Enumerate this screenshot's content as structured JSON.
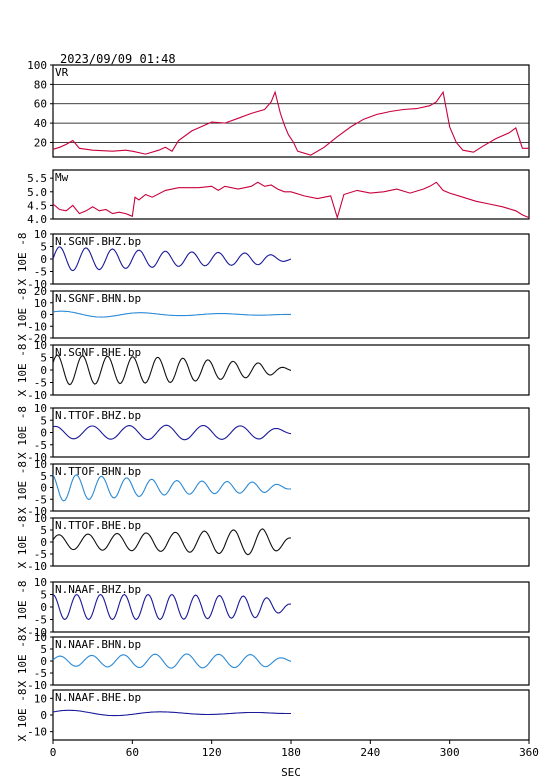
{
  "header": {
    "timestamp": "2023/09/09 01:48"
  },
  "x_axis": {
    "label": "SEC",
    "min": 0,
    "max": 360,
    "ticks": [
      0,
      60,
      120,
      180,
      240,
      300,
      360
    ]
  },
  "colors": {
    "vr": "#c8003c",
    "mw": "#c8003c",
    "bhz": "#1a1a9a",
    "bhn": "#2c8ad6",
    "bhe": "#111111"
  },
  "chart_data": [
    {
      "type": "line",
      "label": "VR",
      "ylim": [
        5,
        100
      ],
      "yticks": [
        20,
        40,
        60,
        80,
        100
      ],
      "grid": true,
      "color_key": "vr",
      "points": [
        [
          0,
          13
        ],
        [
          5,
          15
        ],
        [
          10,
          18
        ],
        [
          15,
          22
        ],
        [
          20,
          14
        ],
        [
          30,
          12
        ],
        [
          45,
          11
        ],
        [
          55,
          12
        ],
        [
          60,
          11
        ],
        [
          70,
          8
        ],
        [
          80,
          12
        ],
        [
          85,
          15
        ],
        [
          90,
          11
        ],
        [
          95,
          22
        ],
        [
          105,
          32
        ],
        [
          115,
          38
        ],
        [
          120,
          41
        ],
        [
          130,
          40
        ],
        [
          140,
          45
        ],
        [
          150,
          50
        ],
        [
          160,
          54
        ],
        [
          165,
          62
        ],
        [
          168,
          72
        ],
        [
          172,
          50
        ],
        [
          175,
          38
        ],
        [
          178,
          28
        ],
        [
          182,
          20
        ],
        [
          185,
          11
        ],
        [
          195,
          7
        ],
        [
          205,
          15
        ],
        [
          215,
          26
        ],
        [
          225,
          36
        ],
        [
          235,
          44
        ],
        [
          245,
          49
        ],
        [
          255,
          52
        ],
        [
          265,
          54
        ],
        [
          275,
          55
        ],
        [
          285,
          58
        ],
        [
          290,
          62
        ],
        [
          295,
          72
        ],
        [
          300,
          36
        ],
        [
          305,
          20
        ],
        [
          310,
          12
        ],
        [
          318,
          10
        ],
        [
          325,
          16
        ],
        [
          335,
          24
        ],
        [
          345,
          30
        ],
        [
          350,
          35
        ],
        [
          355,
          14
        ],
        [
          360,
          14
        ]
      ]
    },
    {
      "type": "line",
      "label": "Mw",
      "ylim": [
        4.0,
        5.8
      ],
      "yticks": [
        4.0,
        4.5,
        5.0,
        5.5
      ],
      "grid": false,
      "color_key": "mw",
      "points": [
        [
          0,
          4.55
        ],
        [
          5,
          4.35
        ],
        [
          10,
          4.3
        ],
        [
          15,
          4.5
        ],
        [
          20,
          4.2
        ],
        [
          25,
          4.3
        ],
        [
          30,
          4.45
        ],
        [
          35,
          4.3
        ],
        [
          40,
          4.35
        ],
        [
          45,
          4.2
        ],
        [
          50,
          4.25
        ],
        [
          55,
          4.2
        ],
        [
          60,
          4.1
        ],
        [
          62,
          4.8
        ],
        [
          65,
          4.7
        ],
        [
          70,
          4.9
        ],
        [
          75,
          4.8
        ],
        [
          85,
          5.05
        ],
        [
          95,
          5.15
        ],
        [
          110,
          5.15
        ],
        [
          120,
          5.2
        ],
        [
          125,
          5.05
        ],
        [
          130,
          5.2
        ],
        [
          140,
          5.1
        ],
        [
          150,
          5.2
        ],
        [
          155,
          5.35
        ],
        [
          160,
          5.2
        ],
        [
          165,
          5.25
        ],
        [
          170,
          5.1
        ],
        [
          175,
          5.0
        ],
        [
          180,
          5.0
        ],
        [
          190,
          4.85
        ],
        [
          200,
          4.75
        ],
        [
          210,
          4.85
        ],
        [
          215,
          4.05
        ],
        [
          220,
          4.9
        ],
        [
          230,
          5.05
        ],
        [
          240,
          4.95
        ],
        [
          250,
          5.0
        ],
        [
          260,
          5.1
        ],
        [
          270,
          4.95
        ],
        [
          280,
          5.1
        ],
        [
          285,
          5.2
        ],
        [
          290,
          5.35
        ],
        [
          295,
          5.05
        ],
        [
          300,
          4.95
        ],
        [
          310,
          4.8
        ],
        [
          320,
          4.65
        ],
        [
          330,
          4.55
        ],
        [
          340,
          4.45
        ],
        [
          350,
          4.3
        ],
        [
          355,
          4.15
        ],
        [
          360,
          4.05
        ]
      ]
    },
    {
      "type": "line",
      "label": "N.SGNF.BHZ.bp",
      "ylim": [
        -10,
        10
      ],
      "yticks": [
        -10,
        -5,
        0,
        5,
        10
      ],
      "color_key": "bhz",
      "ylabel": "X 10E -8",
      "x": [
        0,
        180
      ],
      "osc": {
        "amp": [
          5,
          3,
          2
        ],
        "period": 20,
        "phase": 0,
        "offset": 0
      }
    },
    {
      "type": "line",
      "label": "N.SGNF.BHN.bp",
      "ylim": [
        -20,
        20
      ],
      "yticks": [
        -20,
        -10,
        0,
        10,
        20
      ],
      "color_key": "bhn",
      "ylabel": "X 10E -8",
      "x": [
        0,
        180
      ],
      "osc": {
        "amp": [
          3,
          1,
          0.5
        ],
        "period": 60,
        "phase": 0.8,
        "offset": 0
      }
    },
    {
      "type": "line",
      "label": "N.SGNF.BHE.bp",
      "ylim": [
        -10,
        10
      ],
      "yticks": [
        -10,
        -5,
        0,
        5,
        10
      ],
      "color_key": "bhe",
      "ylabel": "X 10E -8",
      "x": [
        0,
        180
      ],
      "osc": {
        "amp": [
          6,
          5,
          2
        ],
        "period": 19,
        "phase": 0.5,
        "offset": 0
      }
    },
    {
      "type": "line",
      "label": "N.TTOF.BHZ.bp",
      "ylim": [
        -10,
        10
      ],
      "yticks": [
        -10,
        -5,
        0,
        5,
        10
      ],
      "color_key": "bhz",
      "ylabel": "X 10E -8",
      "x": [
        0,
        180
      ],
      "osc": {
        "amp": [
          2.5,
          3,
          2.5
        ],
        "period": 28,
        "phase": 1.2,
        "offset": 0
      }
    },
    {
      "type": "line",
      "label": "N.TTOF.BHN.bp",
      "ylim": [
        -10,
        10
      ],
      "yticks": [
        -10,
        -5,
        0,
        5,
        10
      ],
      "color_key": "bhn",
      "ylabel": "X 10E -8",
      "x": [
        0,
        180
      ],
      "osc": {
        "amp": [
          6,
          3,
          2
        ],
        "period": 19,
        "phase": 2.0,
        "offset": 0
      }
    },
    {
      "type": "line",
      "label": "N.TTOF.BHE.bp",
      "ylim": [
        -10,
        10
      ],
      "yticks": [
        -10,
        -5,
        0,
        5,
        10
      ],
      "color_key": "bhe",
      "ylabel": "X 10E -8",
      "x": [
        0,
        180
      ],
      "osc": {
        "amp": [
          3,
          4,
          6
        ],
        "period": 22,
        "phase": 0.3,
        "offset": 0
      }
    },
    {
      "type": "line",
      "label": "N.NAAF.BHZ.bp",
      "ylim": [
        -10,
        10
      ],
      "yticks": [
        -10,
        -5,
        0,
        5,
        10
      ],
      "color_key": "bhz",
      "ylabel": "X 10E -8",
      "x": [
        0,
        180
      ],
      "osc": {
        "amp": [
          5,
          5,
          4
        ],
        "period": 18,
        "phase": 1.6,
        "offset": 0
      }
    },
    {
      "type": "line",
      "label": "N.NAAF.BHN.bp",
      "ylim": [
        -10,
        10
      ],
      "yticks": [
        -10,
        -5,
        0,
        5,
        10
      ],
      "color_key": "bhn",
      "ylabel": "X 10E -8",
      "x": [
        0,
        180
      ],
      "osc": {
        "amp": [
          2,
          3,
          2.5
        ],
        "period": 24,
        "phase": 0.2,
        "offset": 0
      }
    },
    {
      "type": "line",
      "label": "N.NAAF.BHE.bp",
      "ylim": [
        -15,
        15
      ],
      "yticks": [
        -10,
        0,
        10
      ],
      "color_key": "bhz",
      "ylabel": "X 10E -8",
      "x": [
        0,
        180
      ],
      "osc": {
        "amp": [
          2,
          0.8,
          0.4
        ],
        "period": 70,
        "phase": 0.4,
        "offset": 1
      }
    }
  ]
}
